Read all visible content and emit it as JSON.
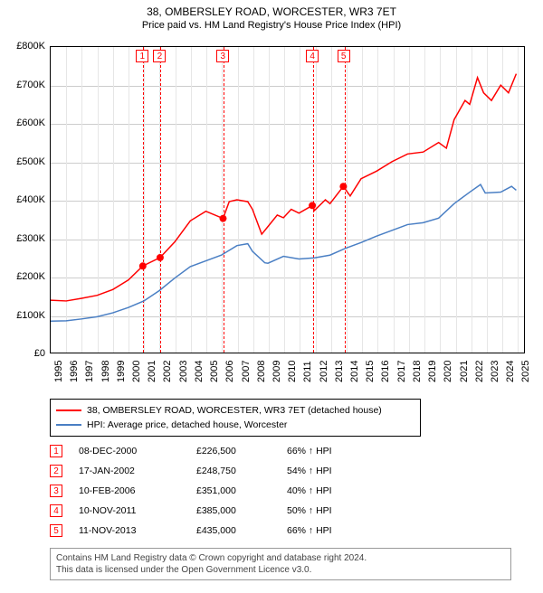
{
  "title": "38, OMBERSLEY ROAD, WORCESTER, WR3 7ET",
  "subtitle": "Price paid vs. HM Land Registry's House Price Index (HPI)",
  "chart": {
    "type": "line",
    "x_years": [
      1995,
      1996,
      1997,
      1998,
      1999,
      2000,
      2001,
      2002,
      2003,
      2004,
      2005,
      2006,
      2007,
      2008,
      2009,
      2010,
      2011,
      2012,
      2013,
      2014,
      2015,
      2016,
      2017,
      2018,
      2019,
      2020,
      2021,
      2022,
      2023,
      2024,
      2025
    ],
    "xlim": [
      1995,
      2025.5
    ],
    "ylim": [
      0,
      800000
    ],
    "ytick_step": 100000,
    "ytick_labels": [
      "£0",
      "£100K",
      "£200K",
      "£300K",
      "£400K",
      "£500K",
      "£600K",
      "£700K",
      "£800K"
    ],
    "grid_color": "#cccccc",
    "minor_grid_color": "#e6e6e6",
    "background_color": "#ffffff",
    "axis_color": "#000000",
    "label_fontsize": 11
  },
  "series": [
    {
      "id": "property",
      "label": "38, OMBERSLEY ROAD, WORCESTER, WR3 7ET (detached house)",
      "color": "#ff0000",
      "line_width": 1.5,
      "points": [
        [
          1995,
          137000
        ],
        [
          1996,
          135000
        ],
        [
          1997,
          142000
        ],
        [
          1998,
          150000
        ],
        [
          1999,
          165000
        ],
        [
          2000,
          190000
        ],
        [
          2000.94,
          226500
        ],
        [
          2002.05,
          248750
        ],
        [
          2003,
          290000
        ],
        [
          2004,
          345000
        ],
        [
          2005,
          370000
        ],
        [
          2006.11,
          351000
        ],
        [
          2006.5,
          395000
        ],
        [
          2007,
          400000
        ],
        [
          2007.7,
          395000
        ],
        [
          2008,
          375000
        ],
        [
          2008.6,
          310000
        ],
        [
          2009,
          330000
        ],
        [
          2009.6,
          360000
        ],
        [
          2010,
          353000
        ],
        [
          2010.5,
          375000
        ],
        [
          2011,
          365000
        ],
        [
          2011.86,
          385000
        ],
        [
          2012,
          372000
        ],
        [
          2012.7,
          400000
        ],
        [
          2013,
          390000
        ],
        [
          2013.86,
          435000
        ],
        [
          2014.3,
          410000
        ],
        [
          2015,
          455000
        ],
        [
          2016,
          475000
        ],
        [
          2017,
          500000
        ],
        [
          2018,
          520000
        ],
        [
          2019,
          525000
        ],
        [
          2020,
          550000
        ],
        [
          2020.5,
          535000
        ],
        [
          2021,
          610000
        ],
        [
          2021.7,
          660000
        ],
        [
          2022,
          650000
        ],
        [
          2022.5,
          720000
        ],
        [
          2022.9,
          680000
        ],
        [
          2023.4,
          660000
        ],
        [
          2024,
          700000
        ],
        [
          2024.5,
          680000
        ],
        [
          2025,
          730000
        ]
      ],
      "markers": [
        {
          "x": 2000.94,
          "y": 226500
        },
        {
          "x": 2002.05,
          "y": 248750
        },
        {
          "x": 2006.11,
          "y": 351000
        },
        {
          "x": 2011.86,
          "y": 385000
        },
        {
          "x": 2013.86,
          "y": 435000
        }
      ],
      "marker_color": "#ff0000",
      "marker_size": 4
    },
    {
      "id": "hpi",
      "label": "HPI: Average price, detached house, Worcester",
      "color": "#4a7fc4",
      "line_width": 1.5,
      "points": [
        [
          1995,
          82000
        ],
        [
          1996,
          83000
        ],
        [
          1997,
          88000
        ],
        [
          1998,
          94000
        ],
        [
          1999,
          104000
        ],
        [
          2000,
          118000
        ],
        [
          2001,
          135000
        ],
        [
          2002,
          162000
        ],
        [
          2003,
          195000
        ],
        [
          2004,
          225000
        ],
        [
          2005,
          240000
        ],
        [
          2006,
          255000
        ],
        [
          2007,
          280000
        ],
        [
          2007.7,
          285000
        ],
        [
          2008,
          265000
        ],
        [
          2008.8,
          235000
        ],
        [
          2009,
          234000
        ],
        [
          2010,
          252000
        ],
        [
          2011,
          245000
        ],
        [
          2012,
          248000
        ],
        [
          2013,
          255000
        ],
        [
          2014,
          273000
        ],
        [
          2015,
          288000
        ],
        [
          2016,
          305000
        ],
        [
          2017,
          320000
        ],
        [
          2018,
          335000
        ],
        [
          2019,
          340000
        ],
        [
          2020,
          352000
        ],
        [
          2021,
          390000
        ],
        [
          2022,
          420000
        ],
        [
          2022.7,
          440000
        ],
        [
          2023,
          418000
        ],
        [
          2024,
          420000
        ],
        [
          2024.7,
          435000
        ],
        [
          2025,
          425000
        ]
      ]
    }
  ],
  "events": [
    {
      "idx": "1",
      "x": 2000.94
    },
    {
      "idx": "2",
      "x": 2002.05
    },
    {
      "idx": "3",
      "x": 2006.11
    },
    {
      "idx": "4",
      "x": 2011.86
    },
    {
      "idx": "5",
      "x": 2013.86
    }
  ],
  "event_line_color": "#ff0000",
  "event_box_border": "#ff0000",
  "sales": [
    {
      "idx": "1",
      "date": "08-DEC-2000",
      "price": "£226,500",
      "delta": "66% ↑ HPI"
    },
    {
      "idx": "2",
      "date": "17-JAN-2002",
      "price": "£248,750",
      "delta": "54% ↑ HPI"
    },
    {
      "idx": "3",
      "date": "10-FEB-2006",
      "price": "£351,000",
      "delta": "40% ↑ HPI"
    },
    {
      "idx": "4",
      "date": "10-NOV-2011",
      "price": "£385,000",
      "delta": "50% ↑ HPI"
    },
    {
      "idx": "5",
      "date": "11-NOV-2013",
      "price": "£435,000",
      "delta": "66% ↑ HPI"
    }
  ],
  "attribution_line1": "Contains HM Land Registry data © Crown copyright and database right 2024.",
  "attribution_line2": "This data is licensed under the Open Government Licence v3.0."
}
